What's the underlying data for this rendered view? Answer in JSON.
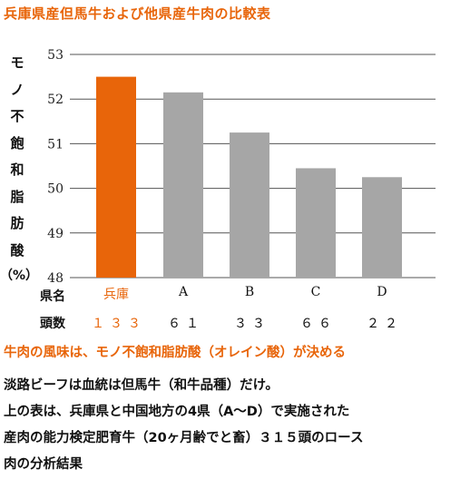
{
  "title": "兵庫県産但馬牛および他県産牛肉の比較表",
  "chart_data": {
    "type": "bar",
    "ylabel_chars": [
      "モ",
      "ノ",
      "不",
      "飽",
      "和",
      "脂",
      "肪",
      "酸"
    ],
    "ylabel_unit": "（%）",
    "yticks": [
      "53",
      "52",
      "51",
      "50",
      "49",
      "48"
    ],
    "ylim": [
      48,
      53.5
    ],
    "categories": [
      "兵庫",
      "A",
      "B",
      "C",
      "D"
    ],
    "values": [
      52.5,
      52.15,
      51.25,
      50.45,
      50.25
    ],
    "counts": [
      "１３３",
      "６１",
      "３３",
      "６６",
      "２２"
    ],
    "colors": [
      "#e8650a",
      "#a6a6a6",
      "#a6a6a6",
      "#a6a6a6",
      "#a6a6a6"
    ],
    "highlight_index": 0,
    "grid": true
  },
  "table": {
    "row1_label": "県名",
    "row2_label": "頭数"
  },
  "subhead": "牛肉の風味は、モノ不飽和脂肪酸（オレイン酸）が決める",
  "paragraph": [
    "淡路ビーフは血統は但馬牛（和牛品種）だけ。",
    "上の表は、兵庫県と中国地方の4県（A～D）で実施された",
    "産肉の能力検定肥育牛（20ヶ月齢でと畜）３１５頭のロース",
    "肉の分析結果"
  ]
}
